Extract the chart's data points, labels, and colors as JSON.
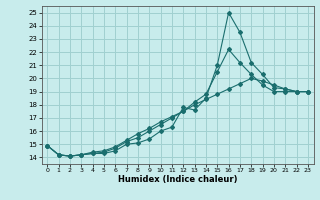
{
  "xlabel": "Humidex (Indice chaleur)",
  "xlim": [
    -0.5,
    23.5
  ],
  "ylim": [
    13.5,
    25.5
  ],
  "xticks": [
    0,
    1,
    2,
    3,
    4,
    5,
    6,
    7,
    8,
    9,
    10,
    11,
    12,
    13,
    14,
    15,
    16,
    17,
    18,
    19,
    20,
    21,
    22,
    23
  ],
  "yticks": [
    14,
    15,
    16,
    17,
    18,
    19,
    20,
    21,
    22,
    23,
    24,
    25
  ],
  "background_color": "#c8ecec",
  "grid_color": "#a0d0d0",
  "line_color": "#1a6e6e",
  "line1_x": [
    0,
    1,
    2,
    3,
    4,
    5,
    6,
    7,
    8,
    9,
    10,
    11,
    12,
    13,
    14,
    15,
    16,
    17,
    18,
    19,
    20,
    21,
    22,
    23
  ],
  "line1_y": [
    14.9,
    14.2,
    14.1,
    14.2,
    14.3,
    14.3,
    14.5,
    15.0,
    15.1,
    15.4,
    16.0,
    16.3,
    17.8,
    17.6,
    18.5,
    21.0,
    25.0,
    23.5,
    21.2,
    20.3,
    19.3,
    19.2,
    19.0,
    19.0
  ],
  "line2_x": [
    0,
    1,
    2,
    3,
    4,
    5,
    6,
    7,
    8,
    9,
    10,
    11,
    12,
    13,
    14,
    15,
    16,
    17,
    18,
    19,
    20,
    21,
    22,
    23
  ],
  "line2_y": [
    14.9,
    14.2,
    14.1,
    14.2,
    14.3,
    14.4,
    14.7,
    15.2,
    15.5,
    16.0,
    16.5,
    17.0,
    17.5,
    18.2,
    18.8,
    20.5,
    22.2,
    21.2,
    20.3,
    19.5,
    19.0,
    19.0,
    19.0,
    19.0
  ],
  "line3_x": [
    0,
    1,
    2,
    3,
    4,
    5,
    6,
    7,
    8,
    9,
    10,
    11,
    12,
    13,
    14,
    15,
    16,
    17,
    18,
    19,
    20,
    21,
    22,
    23
  ],
  "line3_y": [
    14.9,
    14.2,
    14.1,
    14.2,
    14.4,
    14.5,
    14.8,
    15.3,
    15.8,
    16.2,
    16.7,
    17.1,
    17.5,
    18.0,
    18.4,
    18.8,
    19.2,
    19.6,
    20.0,
    19.8,
    19.5,
    19.2,
    19.0,
    19.0
  ]
}
